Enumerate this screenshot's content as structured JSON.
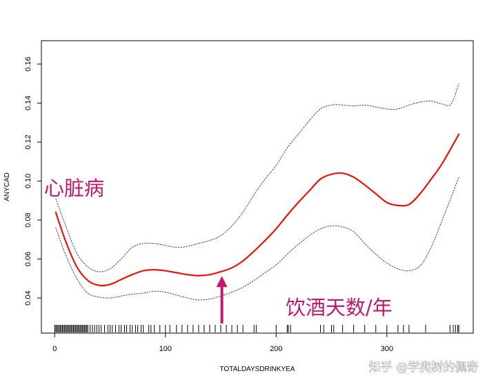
{
  "chart_data": {
    "type": "line",
    "title": "",
    "xlabel": "TOTALDAYSDRINKYEA",
    "ylabel": "ANYCAD",
    "xlim": [
      -12,
      378
    ],
    "ylim": [
      0.022,
      0.172
    ],
    "x_ticks": [
      0,
      100,
      200,
      300
    ],
    "x_tick_labels": [
      "0",
      "100",
      "200",
      "300"
    ],
    "y_ticks": [
      0.04,
      0.06,
      0.08,
      0.1,
      0.12,
      0.14,
      0.16
    ],
    "y_tick_labels": [
      "0.04",
      "0.06",
      "0.08",
      "0.10",
      "0.12",
      "0.14",
      "0.16"
    ],
    "grid": false,
    "series": [
      {
        "role": "estimate",
        "color": "#e8140c",
        "style": "solid",
        "x": [
          1,
          10,
          20,
          30,
          40,
          50,
          60,
          70,
          80,
          90,
          100,
          110,
          120,
          130,
          140,
          150,
          160,
          170,
          180,
          190,
          200,
          210,
          220,
          230,
          240,
          250,
          260,
          270,
          280,
          290,
          300,
          310,
          320,
          330,
          340,
          350,
          365
        ],
        "y": [
          0.084,
          0.069,
          0.056,
          0.049,
          0.0465,
          0.047,
          0.0495,
          0.052,
          0.054,
          0.0545,
          0.054,
          0.053,
          0.052,
          0.0515,
          0.052,
          0.0535,
          0.0555,
          0.059,
          0.064,
          0.0695,
          0.0755,
          0.0825,
          0.089,
          0.095,
          0.101,
          0.1035,
          0.104,
          0.102,
          0.098,
          0.0935,
          0.089,
          0.0875,
          0.088,
          0.0935,
          0.101,
          0.109,
          0.124
        ]
      },
      {
        "role": "upper-bound",
        "color": "#2d35c8",
        "style": "dotted",
        "x": [
          1,
          10,
          20,
          30,
          40,
          50,
          60,
          70,
          80,
          90,
          100,
          110,
          120,
          130,
          140,
          150,
          160,
          170,
          180,
          190,
          200,
          210,
          220,
          230,
          240,
          250,
          260,
          270,
          280,
          290,
          300,
          310,
          320,
          330,
          340,
          350,
          358,
          365
        ],
        "y": [
          0.091,
          0.077,
          0.063,
          0.056,
          0.0535,
          0.055,
          0.06,
          0.066,
          0.068,
          0.068,
          0.067,
          0.066,
          0.0665,
          0.068,
          0.0695,
          0.072,
          0.077,
          0.084,
          0.093,
          0.101,
          0.108,
          0.117,
          0.124,
          0.131,
          0.137,
          0.139,
          0.139,
          0.1385,
          0.139,
          0.138,
          0.137,
          0.137,
          0.139,
          0.1405,
          0.141,
          0.1395,
          0.1395,
          0.15
        ]
      },
      {
        "role": "lower-bound",
        "color": "#2d35c8",
        "style": "dotted",
        "x": [
          1,
          10,
          20,
          30,
          40,
          50,
          60,
          70,
          80,
          90,
          100,
          110,
          120,
          130,
          140,
          150,
          160,
          170,
          180,
          190,
          200,
          210,
          220,
          230,
          240,
          250,
          260,
          270,
          280,
          290,
          300,
          310,
          320,
          330,
          340,
          350,
          365
        ],
        "y": [
          0.076,
          0.062,
          0.05,
          0.0425,
          0.0405,
          0.04,
          0.041,
          0.042,
          0.0425,
          0.0435,
          0.043,
          0.0415,
          0.04,
          0.039,
          0.0395,
          0.041,
          0.043,
          0.0455,
          0.049,
          0.053,
          0.057,
          0.0625,
          0.0675,
          0.072,
          0.0755,
          0.077,
          0.0765,
          0.074,
          0.068,
          0.0625,
          0.058,
          0.055,
          0.054,
          0.0565,
          0.066,
          0.08,
          0.102
        ]
      }
    ],
    "rug_x": [
      0,
      1,
      2,
      3,
      4,
      5,
      6,
      7,
      8,
      9,
      10,
      11,
      12,
      13,
      14,
      15,
      16,
      17,
      18,
      19,
      20,
      21,
      22,
      23,
      24,
      25,
      26,
      27,
      28,
      29,
      30,
      32,
      34,
      36,
      38,
      40,
      42,
      45,
      48,
      50,
      52,
      55,
      58,
      60,
      63,
      65,
      68,
      70,
      73,
      75,
      78,
      80,
      85,
      87,
      90,
      95,
      100,
      104,
      110,
      115,
      120,
      125,
      130,
      135,
      140,
      145,
      150,
      155,
      160,
      165,
      170,
      180,
      182,
      200,
      210,
      211,
      213,
      240,
      243,
      250,
      252,
      260,
      270,
      280,
      290,
      300,
      310,
      315,
      320,
      335,
      357,
      360,
      362,
      364,
      365
    ],
    "annotations": [
      {
        "text": "心脏病",
        "color": "#c0186e"
      },
      {
        "text": "饮酒天数/年",
        "color": "#c0186e"
      }
    ],
    "arrow_at": {
      "x": 151,
      "y": 0.052
    },
    "watermark": "知乎 @学爬树的佩奇"
  }
}
